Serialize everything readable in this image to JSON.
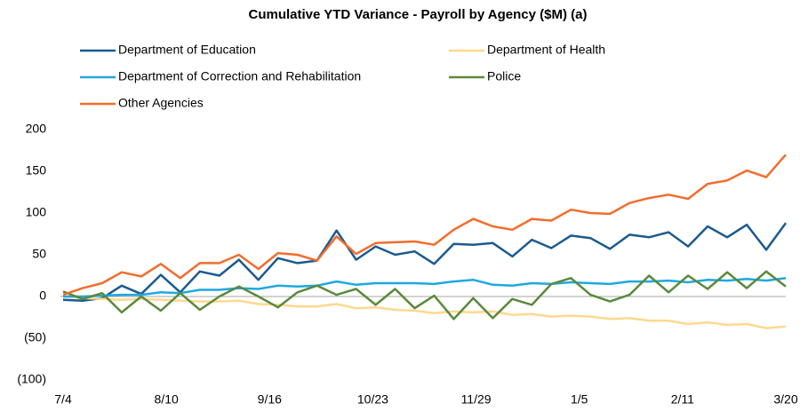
{
  "chart_data": {
    "type": "line",
    "title": "Cumulative YTD Variance - Payroll by Agency ($M) (a)",
    "x": [
      0,
      7,
      14,
      21,
      28,
      35,
      42,
      49,
      56,
      63,
      70,
      77,
      84,
      91,
      98,
      105,
      112,
      119,
      126,
      133,
      140,
      147,
      154,
      161,
      168,
      175,
      182,
      189,
      196,
      203,
      210,
      217,
      224,
      231,
      238,
      245,
      252,
      259
    ],
    "xlim": [
      0,
      259
    ],
    "xticks": [
      {
        "value": 0,
        "label": "7/4"
      },
      {
        "value": 37,
        "label": "8/10"
      },
      {
        "value": 74,
        "label": "9/16"
      },
      {
        "value": 111,
        "label": "10/23"
      },
      {
        "value": 148,
        "label": "11/29"
      },
      {
        "value": 185,
        "label": "1/5"
      },
      {
        "value": 222,
        "label": "2/11"
      },
      {
        "value": 259,
        "label": "3/20"
      }
    ],
    "ylim": [
      -100,
      200
    ],
    "yticks": [
      {
        "value": -100,
        "label": "(100)"
      },
      {
        "value": -50,
        "label": "(50)"
      },
      0,
      50,
      100,
      150,
      200
    ],
    "series": [
      {
        "name": "Department of Education",
        "color": "#1b5a8e",
        "values": [
          -4,
          -5,
          -2,
          13,
          3,
          26,
          5,
          30,
          25,
          44,
          20,
          46,
          40,
          43,
          79,
          44,
          60,
          50,
          54,
          39,
          63,
          62,
          64,
          48,
          68,
          58,
          73,
          70,
          57,
          74,
          71,
          77,
          60,
          84,
          71,
          86,
          56,
          88
        ]
      },
      {
        "name": "Department of Health",
        "color": "#ffd88f",
        "values": [
          0,
          -2,
          -3,
          -4,
          -3,
          -4,
          -5,
          -6,
          -6,
          -5,
          -9,
          -10,
          -12,
          -12,
          -9,
          -14,
          -13,
          -16,
          -17,
          -20,
          -18,
          -19,
          -18,
          -22,
          -21,
          -24,
          -23,
          -24,
          -27,
          -26,
          -29,
          -29,
          -33,
          -31,
          -34,
          -33,
          -38,
          -36
        ]
      },
      {
        "name": "Department of Correction and Rehabilitation",
        "color": "#1ea8e0",
        "values": [
          0,
          0,
          1,
          2,
          2,
          5,
          4,
          8,
          8,
          10,
          9,
          13,
          12,
          13,
          18,
          14,
          16,
          16,
          16,
          15,
          18,
          20,
          14,
          13,
          16,
          15,
          17,
          16,
          15,
          18,
          18,
          19,
          17,
          20,
          19,
          21,
          19,
          22
        ]
      },
      {
        "name": "Police",
        "color": "#5a8a3c",
        "values": [
          6,
          -3,
          4,
          -19,
          0,
          -17,
          4,
          -16,
          0,
          12,
          0,
          -13,
          5,
          13,
          2,
          9,
          -10,
          9,
          -14,
          1,
          -27,
          -2,
          -26,
          -3,
          -10,
          15,
          22,
          2,
          -6,
          2,
          25,
          5,
          25,
          9,
          29,
          10,
          30,
          12
        ]
      },
      {
        "name": "Other Agencies",
        "color": "#f26c2b",
        "values": [
          2,
          10,
          16,
          29,
          24,
          39,
          22,
          40,
          40,
          50,
          33,
          52,
          50,
          43,
          72,
          51,
          64,
          65,
          66,
          62,
          80,
          93,
          84,
          80,
          93,
          91,
          104,
          100,
          99,
          112,
          118,
          122,
          117,
          135,
          139,
          151,
          143,
          170
        ]
      }
    ]
  }
}
